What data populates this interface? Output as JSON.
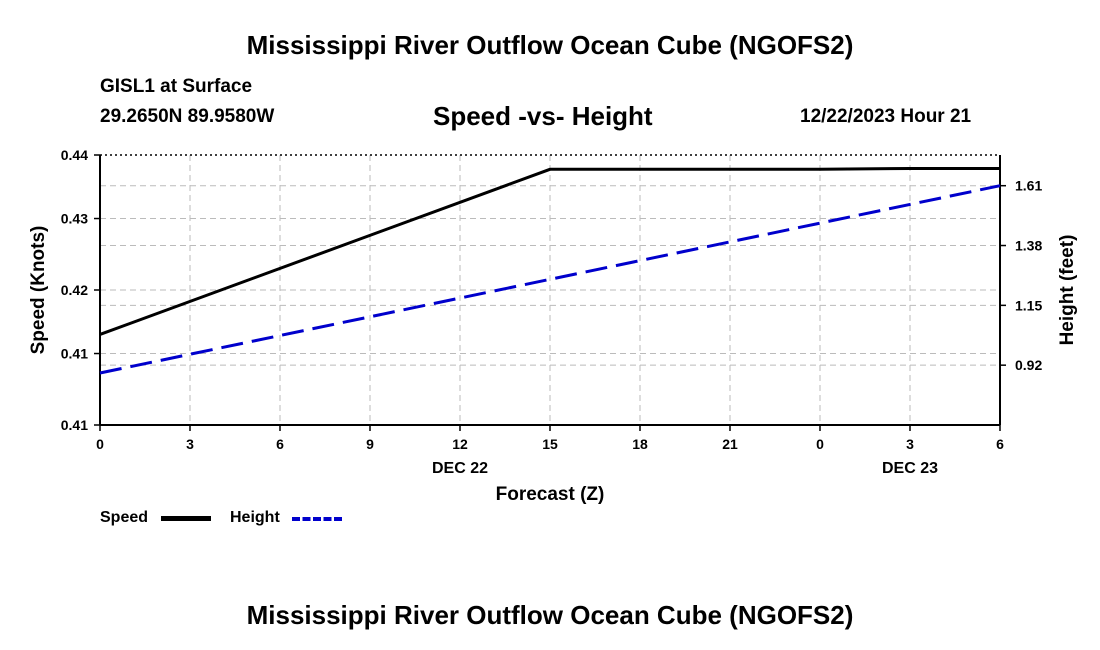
{
  "header": {
    "title": "Mississippi River Outflow Ocean Cube (NGOFS2)",
    "station": "GISL1 at Surface",
    "coordinates": "29.2650N  89.9580W",
    "subtitle": "Speed -vs- Height",
    "datetime": "12/22/2023 Hour 21"
  },
  "footer": {
    "title": "Mississippi River Outflow Ocean Cube (NGOFS2)"
  },
  "legend": {
    "speed_label": "Speed",
    "height_label": "Height"
  },
  "colors": {
    "speed": "#000000",
    "height": "#0000cc",
    "grid": "#bbbbbb"
  },
  "chart_data": {
    "type": "line",
    "title": "Speed -vs- Height",
    "xlabel": "Forecast (Z)",
    "ylabel_left": "Speed (Knots)",
    "ylabel_right": "Height (feet)",
    "x": [
      0,
      3,
      6,
      9,
      12,
      15,
      18,
      21,
      24,
      27,
      30
    ],
    "x_tick_labels": [
      "0",
      "3",
      "6",
      "9",
      "12",
      "15",
      "18",
      "21",
      "0",
      "3",
      "6"
    ],
    "date_labels": [
      {
        "x": 12,
        "label": "DEC 22"
      },
      {
        "x": 27,
        "label": "DEC 23"
      }
    ],
    "xlim": [
      0,
      30
    ],
    "left_axis": {
      "ylim": [
        0.406,
        0.44
      ],
      "ticks": [
        0.406,
        0.415,
        0.423,
        0.432,
        0.44
      ],
      "tick_labels": [
        "0.41",
        "0.41",
        "0.42",
        "0.43",
        "0.44"
      ]
    },
    "right_axis": {
      "ylim": [
        0.69,
        1.728
      ],
      "ticks": [
        0.92,
        1.15,
        1.38,
        1.61
      ],
      "tick_labels": [
        "0.92",
        "1.15",
        "1.38",
        "1.61"
      ]
    },
    "series": [
      {
        "name": "Speed",
        "axis": "left",
        "style": "solid",
        "x": [
          0,
          15,
          18,
          21,
          24,
          27,
          30
        ],
        "values": [
          0.4174,
          0.4382,
          0.4382,
          0.4382,
          0.4382,
          0.4383,
          0.4383
        ]
      },
      {
        "name": "Height",
        "axis": "right",
        "style": "dashed",
        "x": [
          0,
          3,
          6,
          9,
          12,
          15,
          18,
          21,
          24,
          27,
          30
        ],
        "values": [
          0.89,
          0.962,
          1.034,
          1.106,
          1.178,
          1.25,
          1.322,
          1.394,
          1.466,
          1.538,
          1.61
        ]
      }
    ]
  }
}
